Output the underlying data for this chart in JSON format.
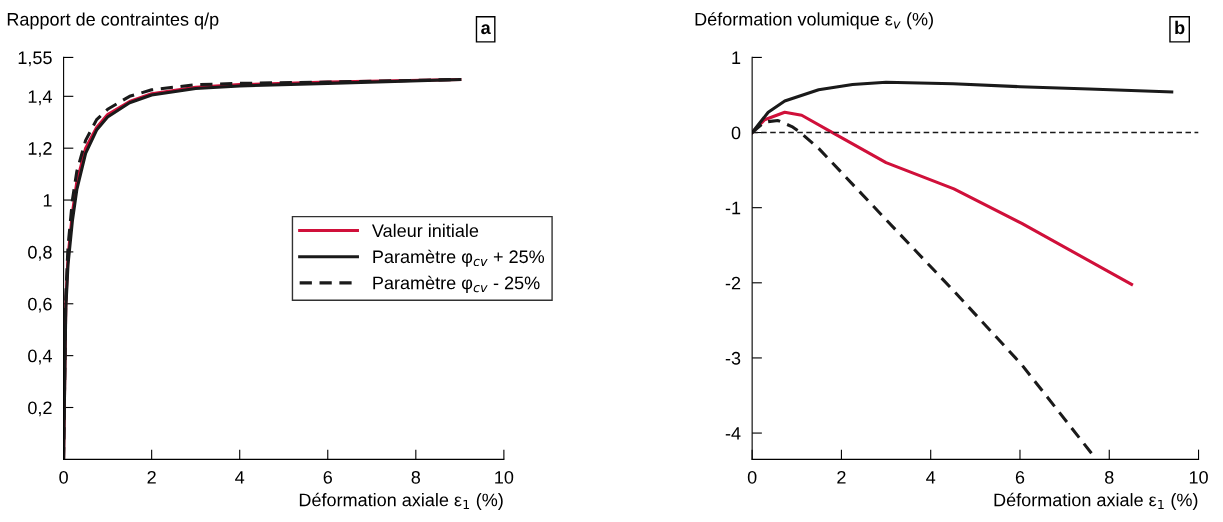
{
  "chart_data": [
    {
      "type": "line",
      "ylabel": "Rapport de contraintes q/p",
      "xlabel": "Déformation axiale ε$_{1}$ (%)",
      "annotations": [
        "a"
      ],
      "xlim": [
        0,
        10
      ],
      "xticks": [
        0,
        2,
        4,
        6,
        8,
        10
      ],
      "ylim": [
        0,
        1.55
      ],
      "yticks": [
        {
          "value": 0.2,
          "label": "0,2"
        },
        {
          "value": 0.4,
          "label": "0,4"
        },
        {
          "value": 0.6,
          "label": "0,6"
        },
        {
          "value": 0.8,
          "label": "0,8"
        },
        {
          "value": 1,
          "label": "1"
        },
        {
          "value": 1.2,
          "label": "1,2"
        },
        {
          "value": 1.4,
          "label": "1,4"
        },
        {
          "value": 1.55,
          "label": "1,55"
        }
      ],
      "grid": false,
      "legend": "right",
      "series": [
        {
          "name": "Valeur initiale",
          "color": "#d0103a",
          "line_style": "solid",
          "x": [
            0,
            0.05,
            0.1,
            0.2,
            0.3,
            0.5,
            0.75,
            1,
            1.5,
            2,
            3,
            4,
            6,
            9
          ],
          "values": [
            0,
            0.6,
            0.78,
            0.95,
            1.07,
            1.2,
            1.28,
            1.33,
            1.38,
            1.41,
            1.435,
            1.445,
            1.455,
            1.465
          ]
        },
        {
          "name": "Paramètre φ$_{cv}$ + 25%",
          "color": "#1a1a1a",
          "line_style": "solid",
          "x": [
            0,
            0.05,
            0.1,
            0.2,
            0.3,
            0.5,
            0.75,
            1,
            1.5,
            2,
            3,
            4,
            6,
            9
          ],
          "values": [
            0,
            0.58,
            0.75,
            0.92,
            1.04,
            1.18,
            1.27,
            1.32,
            1.375,
            1.405,
            1.43,
            1.44,
            1.45,
            1.465
          ]
        },
        {
          "name": "Paramètre φ$_{cv}$ - 25%",
          "color": "#1a1a1a",
          "line_style": "dashed",
          "x": [
            0,
            0.05,
            0.1,
            0.2,
            0.3,
            0.5,
            0.75,
            1,
            1.5,
            2,
            3,
            4,
            6,
            9
          ],
          "values": [
            0,
            0.63,
            0.82,
            1.0,
            1.11,
            1.23,
            1.31,
            1.35,
            1.4,
            1.425,
            1.445,
            1.45,
            1.455,
            1.465
          ]
        }
      ]
    },
    {
      "type": "line",
      "ylabel": "Déformation volumique ε$_{v}$ (%)",
      "xlabel": "Déformation axiale ε$_{1}$ (%)",
      "annotations": [
        "b"
      ],
      "xlim": [
        0,
        10
      ],
      "xticks": [
        0,
        2,
        4,
        6,
        8,
        10
      ],
      "ylim": [
        -4.35,
        1
      ],
      "yticks": [
        -4,
        -3,
        -2,
        -1,
        0,
        1
      ],
      "grid": false,
      "ref_lines": [
        {
          "axis": "y",
          "value": 0,
          "color": "#1a1a1a",
          "line_style": "dashed"
        }
      ],
      "series": [
        {
          "color": "#d0103a",
          "line_style": "solid",
          "x": [
            0,
            0.28,
            0.73,
            1.11,
            1.8,
            3.0,
            4.52,
            6.04,
            8.5
          ],
          "values": [
            0,
            0.17,
            0.27,
            0.23,
            0,
            -0.4,
            -0.75,
            -1.21,
            -2.02
          ]
        },
        {
          "color": "#1a1a1a",
          "line_style": "solid",
          "x": [
            0,
            0.36,
            0.73,
            1.49,
            2.25,
            3.0,
            4.5,
            6.0,
            7.55,
            9.4
          ],
          "values": [
            0,
            0.27,
            0.42,
            0.57,
            0.64,
            0.67,
            0.65,
            0.61,
            0.58,
            0.54
          ]
        },
        {
          "color": "#1a1a1a",
          "line_style": "dashed",
          "x": [
            0,
            0.28,
            0.58,
            0.89,
            1.08,
            1.49,
            3.0,
            4.52,
            6.04,
            7.63
          ],
          "values": [
            0,
            0.14,
            0.16,
            0.08,
            0,
            -0.21,
            -1.16,
            -2.11,
            -3.09,
            -4.29
          ]
        }
      ]
    }
  ]
}
